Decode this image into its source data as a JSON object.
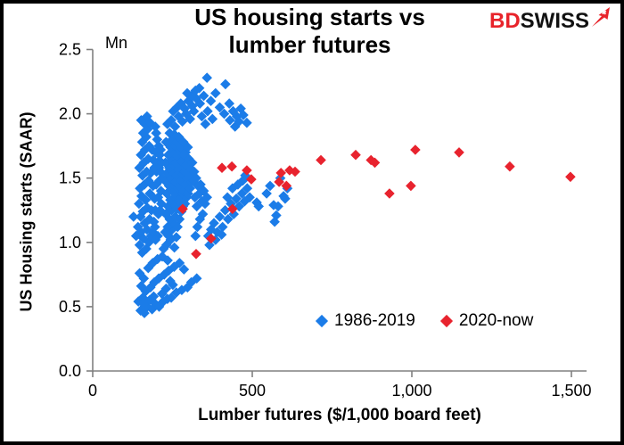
{
  "title": {
    "line1": "US housing starts vs",
    "line2": "lumber futures"
  },
  "logo": {
    "bd": "BD",
    "swiss": "SWISS",
    "mark": "swiss-arrow-icon"
  },
  "unit_label": "Mn",
  "colors": {
    "blue_series": "#1b7ce8",
    "red_series": "#e8232e",
    "axis": "#808080",
    "text": "#000000",
    "logo_red": "#e8232a",
    "background": "#ffffff",
    "border": "#000000"
  },
  "chart_data": {
    "type": "scatter",
    "title": "US housing starts vs lumber futures",
    "xlabel": "Lumber futures ($/1,000 board feet)",
    "ylabel": "US Housing starts (SAAR)",
    "y_unit": "Mn",
    "xlim": [
      0,
      1500
    ],
    "ylim": [
      0.0,
      2.5
    ],
    "x_ticks": [
      0,
      500,
      1000,
      1500
    ],
    "x_tick_labels": [
      "0",
      "500",
      "1,000",
      "1,500"
    ],
    "y_ticks": [
      0.0,
      0.5,
      1.0,
      1.5,
      2.0,
      2.5
    ],
    "y_tick_labels": [
      "0.0",
      "0.5",
      "1.0",
      "1.5",
      "2.0",
      "2.5"
    ],
    "grid": false,
    "legend_position": "inside-bottom-right",
    "marker": "diamond",
    "series": [
      {
        "name": "1986-2019",
        "color": "#1b7ce8",
        "points": [
          [
            150,
            0.47
          ],
          [
            162,
            0.45
          ],
          [
            171,
            0.5
          ],
          [
            143,
            0.54
          ],
          [
            186,
            0.48
          ],
          [
            157,
            0.57
          ],
          [
            178,
            0.55
          ],
          [
            197,
            0.52
          ],
          [
            208,
            0.5
          ],
          [
            221,
            0.54
          ],
          [
            234,
            0.56
          ],
          [
            191,
            0.58
          ],
          [
            246,
            0.57
          ],
          [
            262,
            0.61
          ],
          [
            279,
            0.63
          ],
          [
            297,
            0.65
          ],
          [
            309,
            0.69
          ],
          [
            326,
            0.72
          ],
          [
            217,
            0.6
          ],
          [
            230,
            0.64
          ],
          [
            251,
            0.67
          ],
          [
            166,
            0.62
          ],
          [
            152,
            0.66
          ],
          [
            181,
            0.65
          ],
          [
            193,
            0.69
          ],
          [
            207,
            0.72
          ],
          [
            224,
            0.75
          ],
          [
            238,
            0.78
          ],
          [
            255,
            0.81
          ],
          [
            272,
            0.84
          ],
          [
            286,
            0.79
          ],
          [
            160,
            0.72
          ],
          [
            147,
            0.76
          ],
          [
            174,
            0.8
          ],
          [
            188,
            0.84
          ],
          [
            203,
            0.87
          ],
          [
            218,
            0.89
          ],
          [
            235,
            0.86
          ],
          [
            160,
            0.52
          ],
          [
            243,
            0.7
          ],
          [
            155,
            0.92
          ],
          [
            168,
            0.95
          ],
          [
            147,
            0.98
          ],
          [
            176,
            1.0
          ],
          [
            159,
            1.03
          ],
          [
            183,
            1.05
          ],
          [
            151,
            1.08
          ],
          [
            170,
            1.1
          ],
          [
            142,
            1.12
          ],
          [
            188,
            1.08
          ],
          [
            163,
            1.15
          ],
          [
            178,
            1.18
          ],
          [
            150,
            1.2
          ],
          [
            192,
            1.16
          ],
          [
            157,
            1.24
          ],
          [
            171,
            1.27
          ],
          [
            145,
            1.3
          ],
          [
            184,
            1.25
          ],
          [
            166,
            1.33
          ],
          [
            153,
            1.36
          ],
          [
            179,
            1.38
          ],
          [
            194,
            1.34
          ],
          [
            148,
            1.42
          ],
          [
            162,
            1.45
          ],
          [
            175,
            1.48
          ],
          [
            189,
            1.44
          ],
          [
            156,
            1.52
          ],
          [
            169,
            1.55
          ],
          [
            146,
            1.58
          ],
          [
            182,
            1.54
          ],
          [
            160,
            1.62
          ],
          [
            174,
            1.65
          ],
          [
            151,
            1.68
          ],
          [
            190,
            1.64
          ],
          [
            164,
            1.72
          ],
          [
            177,
            1.75
          ],
          [
            155,
            1.78
          ],
          [
            186,
            1.72
          ],
          [
            168,
            1.82
          ],
          [
            158,
            1.85
          ],
          [
            172,
            1.88
          ],
          [
            163,
            1.92
          ],
          [
            152,
            1.95
          ],
          [
            170,
            1.98
          ],
          [
            180,
            1.93
          ],
          [
            196,
            1.9
          ],
          [
            128,
            1.2
          ],
          [
            136,
            1.05
          ],
          [
            200,
            1.55
          ],
          [
            196,
            1.25
          ],
          [
            204,
            1.05
          ],
          [
            199,
            1.45
          ],
          [
            205,
            1.35
          ],
          [
            193,
            1.58
          ],
          [
            203,
            1.62
          ],
          [
            198,
            1.7
          ],
          [
            207,
            1.75
          ],
          [
            195,
            1.12
          ],
          [
            206,
            1.22
          ],
          [
            209,
            1.48
          ],
          [
            197,
            1.02
          ],
          [
            208,
            1.58
          ],
          [
            202,
            1.8
          ],
          [
            210,
            1.68
          ],
          [
            199,
            1.85
          ],
          [
            212,
            1.55
          ],
          [
            214,
            1.4
          ],
          [
            211,
            1.25
          ],
          [
            216,
            1.62
          ],
          [
            213,
            1.72
          ],
          [
            218,
            1.5
          ],
          [
            215,
            1.3
          ],
          [
            222,
            0.95
          ],
          [
            231,
            0.98
          ],
          [
            244,
            1.02
          ],
          [
            256,
            0.96
          ],
          [
            238,
            1.05
          ],
          [
            227,
            1.08
          ],
          [
            249,
            1.1
          ],
          [
            262,
            1.04
          ],
          [
            235,
            1.12
          ],
          [
            253,
            1.15
          ],
          [
            241,
            1.18
          ],
          [
            266,
            1.12
          ],
          [
            229,
            1.22
          ],
          [
            247,
            1.25
          ],
          [
            259,
            1.2
          ],
          [
            272,
            1.18
          ],
          [
            236,
            1.28
          ],
          [
            251,
            1.3
          ],
          [
            264,
            1.26
          ],
          [
            278,
            1.24
          ],
          [
            243,
            1.33
          ],
          [
            257,
            1.35
          ],
          [
            269,
            1.32
          ],
          [
            283,
            1.28
          ],
          [
            232,
            1.38
          ],
          [
            248,
            1.4
          ],
          [
            261,
            1.36
          ],
          [
            275,
            1.34
          ],
          [
            289,
            1.3
          ],
          [
            239,
            1.44
          ],
          [
            254,
            1.45
          ],
          [
            267,
            1.42
          ],
          [
            281,
            1.38
          ],
          [
            295,
            1.35
          ],
          [
            226,
            1.48
          ],
          [
            245,
            1.5
          ],
          [
            258,
            1.47
          ],
          [
            271,
            1.44
          ],
          [
            285,
            1.4
          ],
          [
            299,
            1.38
          ],
          [
            233,
            1.54
          ],
          [
            250,
            1.55
          ],
          [
            263,
            1.52
          ],
          [
            277,
            1.48
          ],
          [
            291,
            1.45
          ],
          [
            305,
            1.42
          ],
          [
            240,
            1.58
          ],
          [
            255,
            1.6
          ],
          [
            268,
            1.57
          ],
          [
            282,
            1.53
          ],
          [
            296,
            1.5
          ],
          [
            310,
            1.47
          ],
          [
            228,
            1.62
          ],
          [
            246,
            1.64
          ],
          [
            260,
            1.62
          ],
          [
            274,
            1.58
          ],
          [
            288,
            1.55
          ],
          [
            302,
            1.52
          ],
          [
            316,
            1.48
          ],
          [
            237,
            1.68
          ],
          [
            252,
            1.7
          ],
          [
            265,
            1.67
          ],
          [
            279,
            1.63
          ],
          [
            293,
            1.6
          ],
          [
            307,
            1.57
          ],
          [
            244,
            1.74
          ],
          [
            259,
            1.75
          ],
          [
            273,
            1.72
          ],
          [
            287,
            1.68
          ],
          [
            301,
            1.65
          ],
          [
            230,
            1.78
          ],
          [
            249,
            1.8
          ],
          [
            263,
            1.78
          ],
          [
            277,
            1.74
          ],
          [
            291,
            1.7
          ],
          [
            256,
            1.84
          ],
          [
            270,
            1.82
          ],
          [
            284,
            1.78
          ],
          [
            241,
            1.85
          ],
          [
            298,
            1.74
          ],
          [
            312,
            1.62
          ],
          [
            318,
            1.55
          ],
          [
            324,
            1.5
          ],
          [
            330,
            1.44
          ],
          [
            320,
            1.35
          ],
          [
            326,
            1.28
          ],
          [
            334,
            1.38
          ],
          [
            342,
            1.32
          ],
          [
            338,
            1.45
          ],
          [
            348,
            1.4
          ],
          [
            352,
            1.3
          ],
          [
            358,
            1.35
          ],
          [
            345,
            1.22
          ],
          [
            336,
            1.18
          ],
          [
            328,
            1.12
          ],
          [
            322,
            1.05
          ],
          [
            362,
            1.05
          ],
          [
            371,
            1.1
          ],
          [
            380,
            1.15
          ],
          [
            390,
            1.08
          ],
          [
            398,
            1.2
          ],
          [
            407,
            1.12
          ],
          [
            415,
            1.25
          ],
          [
            424,
            1.18
          ],
          [
            433,
            1.3
          ],
          [
            442,
            1.22
          ],
          [
            450,
            1.34
          ],
          [
            459,
            1.28
          ],
          [
            468,
            1.38
          ],
          [
            476,
            1.32
          ],
          [
            366,
            0.98
          ],
          [
            385,
            1.02
          ],
          [
            404,
            1.06
          ],
          [
            422,
            1.35
          ],
          [
            438,
            1.42
          ],
          [
            455,
            1.45
          ],
          [
            470,
            1.48
          ],
          [
            484,
            1.42
          ],
          [
            492,
            1.35
          ],
          [
            478,
            1.52
          ],
          [
            514,
            1.31
          ],
          [
            520,
            1.28
          ],
          [
            567,
            1.29
          ],
          [
            598,
            1.36
          ],
          [
            575,
            1.21
          ],
          [
            570,
            1.16
          ],
          [
            603,
            1.34
          ],
          [
            581,
            1.28
          ],
          [
            545,
            1.38
          ],
          [
            556,
            1.44
          ],
          [
            588,
            1.5
          ],
          [
            610,
            1.42
          ],
          [
            234,
            1.92
          ],
          [
            246,
            1.95
          ],
          [
            258,
            1.9
          ],
          [
            269,
            1.98
          ],
          [
            281,
            1.94
          ],
          [
            293,
            2.0
          ],
          [
            305,
            1.96
          ],
          [
            317,
            2.02
          ],
          [
            252,
            2.02
          ],
          [
            264,
            2.05
          ],
          [
            276,
            2.08
          ],
          [
            288,
            2.04
          ],
          [
            300,
            2.1
          ],
          [
            312,
            2.06
          ],
          [
            324,
            2.12
          ],
          [
            336,
            2.08
          ],
          [
            348,
            2.14
          ],
          [
            310,
            2.14
          ],
          [
            296,
            2.16
          ],
          [
            322,
            2.18
          ],
          [
            334,
            2.2
          ],
          [
            358,
            2.28
          ],
          [
            416,
            2.23
          ],
          [
            385,
            2.16
          ],
          [
            370,
            2.1
          ],
          [
            398,
            2.05
          ],
          [
            412,
            2.0
          ],
          [
            428,
            2.08
          ],
          [
            440,
            2.02
          ],
          [
            452,
            1.98
          ],
          [
            464,
            2.04
          ],
          [
            430,
            1.95
          ],
          [
            446,
            1.9
          ],
          [
            458,
            1.94
          ],
          [
            472,
            1.99
          ],
          [
            483,
            1.93
          ],
          [
            360,
            2.02
          ],
          [
            375,
            1.96
          ],
          [
            342,
            1.98
          ],
          [
            353,
            1.92
          ]
        ]
      },
      {
        "name": "2020-now",
        "color": "#e8232e",
        "points": [
          [
            282,
            1.26
          ],
          [
            324,
            0.91
          ],
          [
            371,
            1.03
          ],
          [
            405,
            1.58
          ],
          [
            436,
            1.59
          ],
          [
            438,
            1.26
          ],
          [
            483,
            1.56
          ],
          [
            497,
            1.49
          ],
          [
            584,
            1.47
          ],
          [
            590,
            1.54
          ],
          [
            607,
            1.44
          ],
          [
            617,
            1.56
          ],
          [
            634,
            1.55
          ],
          [
            715,
            1.64
          ],
          [
            824,
            1.68
          ],
          [
            872,
            1.64
          ],
          [
            884,
            1.62
          ],
          [
            930,
            1.38
          ],
          [
            997,
            1.44
          ],
          [
            1011,
            1.72
          ],
          [
            1148,
            1.7
          ],
          [
            1307,
            1.59
          ],
          [
            1497,
            1.51
          ]
        ]
      }
    ]
  }
}
